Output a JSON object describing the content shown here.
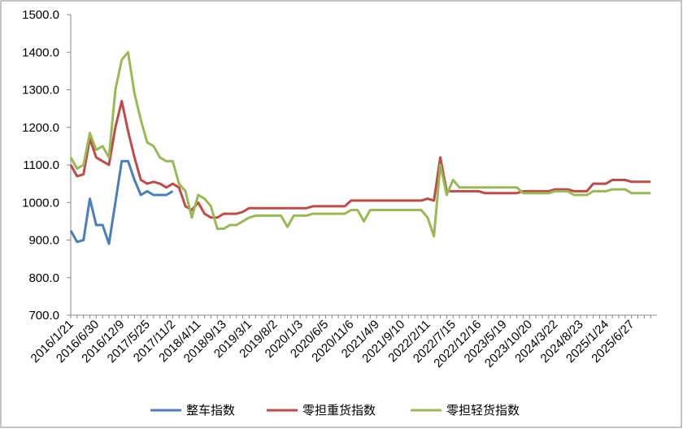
{
  "chart_data": {
    "type": "line",
    "categories": [
      "2016/1/21",
      null,
      null,
      null,
      "2016/6/30",
      null,
      null,
      null,
      "2016/12/9",
      null,
      null,
      null,
      "2017/5/25",
      null,
      null,
      null,
      "2017/11/2",
      null,
      null,
      null,
      "2018/4/11",
      null,
      null,
      null,
      "2018/9/13",
      null,
      null,
      null,
      "2019/3/1",
      null,
      null,
      null,
      "2019/8/2",
      null,
      null,
      null,
      "2020/1/3",
      null,
      null,
      null,
      "2020/6/5",
      null,
      null,
      null,
      "2020/11/6",
      null,
      null,
      null,
      "2021/4/9",
      null,
      null,
      null,
      "2021/9/10",
      null,
      null,
      null,
      "2022/2/11",
      null,
      null,
      null,
      "2022/7/15",
      null,
      null,
      null,
      "2022/12/16",
      null,
      null,
      null,
      "2023/5/19",
      null,
      null,
      null,
      "2023/10/20",
      null,
      null,
      null,
      "2024/3/22",
      null,
      null,
      null,
      "2024/8/23",
      null,
      null,
      null,
      "2025/1/24",
      null,
      null,
      null,
      "2025/6/27",
      null,
      null,
      null
    ],
    "series": [
      {
        "name": "整车指数",
        "color": "#4a7ebb",
        "values": [
          925,
          895,
          900,
          1010,
          940,
          940,
          890,
          1000,
          1110,
          1110,
          1060,
          1020,
          1030,
          1020,
          1020,
          1020,
          1030,
          null,
          null,
          null,
          null,
          null,
          null,
          null,
          null,
          null,
          null,
          null,
          null,
          null,
          null,
          null,
          null,
          null,
          null,
          null,
          null,
          null,
          null,
          null,
          null,
          null,
          null,
          null,
          null,
          null,
          null,
          null,
          null,
          null,
          null,
          null,
          null,
          null,
          null,
          null,
          null,
          null,
          null,
          null,
          null,
          null,
          null,
          null,
          null,
          null,
          null,
          null,
          null,
          null,
          null,
          null,
          null,
          null,
          null,
          null,
          null,
          null,
          null,
          null,
          null,
          null,
          null,
          null,
          null,
          null,
          null,
          null,
          null,
          null,
          null,
          null
        ]
      },
      {
        "name": "零担重货指数",
        "color": "#be4b48",
        "values": [
          1100,
          1070,
          1075,
          1170,
          1120,
          1110,
          1100,
          1200,
          1270,
          1190,
          1120,
          1060,
          1050,
          1055,
          1050,
          1040,
          1050,
          1040,
          990,
          980,
          1000,
          970,
          960,
          960,
          970,
          970,
          970,
          975,
          985,
          985,
          985,
          985,
          985,
          985,
          985,
          985,
          985,
          985,
          990,
          990,
          990,
          990,
          990,
          990,
          1005,
          1005,
          1005,
          1005,
          1005,
          1005,
          1005,
          1005,
          1005,
          1005,
          1005,
          1005,
          1010,
          1005,
          1120,
          1030,
          1030,
          1030,
          1030,
          1030,
          1030,
          1025,
          1025,
          1025,
          1025,
          1025,
          1025,
          1030,
          1030,
          1030,
          1030,
          1030,
          1035,
          1035,
          1035,
          1030,
          1030,
          1030,
          1050,
          1050,
          1050,
          1060,
          1060,
          1060,
          1055,
          1055,
          1055,
          1055
        ]
      },
      {
        "name": "零担轻货指数",
        "color": "#98b954",
        "values": [
          1120,
          1090,
          1100,
          1185,
          1140,
          1150,
          1120,
          1300,
          1380,
          1400,
          1290,
          1220,
          1160,
          1150,
          1120,
          1110,
          1110,
          1050,
          1030,
          960,
          1020,
          1010,
          990,
          930,
          930,
          940,
          940,
          950,
          960,
          965,
          965,
          965,
          965,
          965,
          935,
          965,
          965,
          965,
          970,
          970,
          970,
          970,
          970,
          970,
          980,
          980,
          950,
          980,
          980,
          980,
          980,
          980,
          980,
          980,
          980,
          980,
          960,
          910,
          1100,
          1020,
          1060,
          1040,
          1040,
          1040,
          1040,
          1040,
          1040,
          1040,
          1040,
          1040,
          1040,
          1025,
          1025,
          1025,
          1025,
          1025,
          1030,
          1030,
          1030,
          1020,
          1020,
          1020,
          1030,
          1030,
          1030,
          1035,
          1035,
          1035,
          1025,
          1025,
          1025,
          1025
        ]
      }
    ],
    "ylim": [
      700,
      1500
    ],
    "yticks": [
      {
        "value": 700,
        "label": "700.0"
      },
      {
        "value": 800,
        "label": "800.0"
      },
      {
        "value": 900,
        "label": "900.0"
      },
      {
        "value": 1000,
        "label": "1000.0"
      },
      {
        "value": 1100,
        "label": "1100.0"
      },
      {
        "value": 1200,
        "label": "1200.0"
      },
      {
        "value": 1300,
        "label": "1300.0"
      },
      {
        "value": 1400,
        "label": "1400.0"
      },
      {
        "value": 1500,
        "label": "1500.0"
      }
    ],
    "legend": "bottom"
  }
}
